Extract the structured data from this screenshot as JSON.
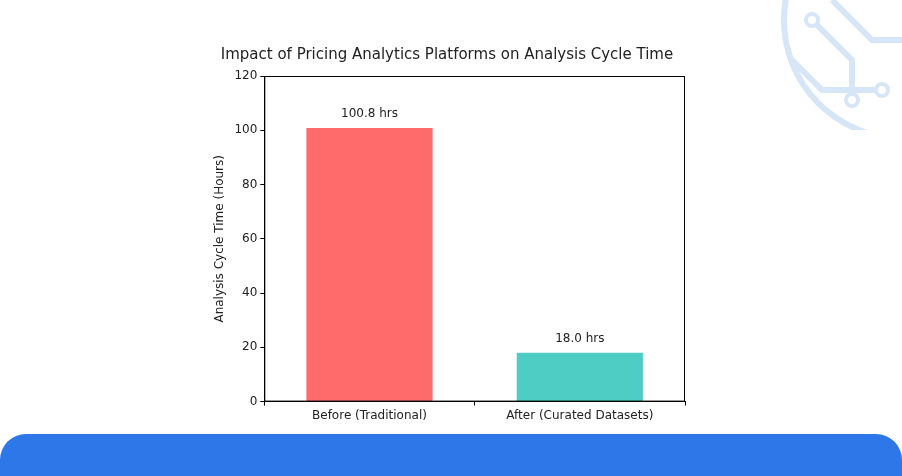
{
  "chart_data": {
    "type": "bar",
    "title": "Impact of Pricing Analytics Platforms on Analysis Cycle Time",
    "ylabel": "Analysis Cycle Time (Hours)",
    "categories": [
      "Before (Traditional)",
      "After (Curated Datasets)"
    ],
    "values": [
      100.8,
      18.0
    ],
    "value_labels": [
      "100.8 hrs",
      "18.0 hrs"
    ],
    "data_labels": true,
    "colors": [
      "#ff6b6b",
      "#4ecdc4"
    ],
    "ylim": [
      0,
      120
    ],
    "yticks": [
      0,
      20,
      40,
      60,
      80,
      100,
      120
    ],
    "grid": false
  }
}
